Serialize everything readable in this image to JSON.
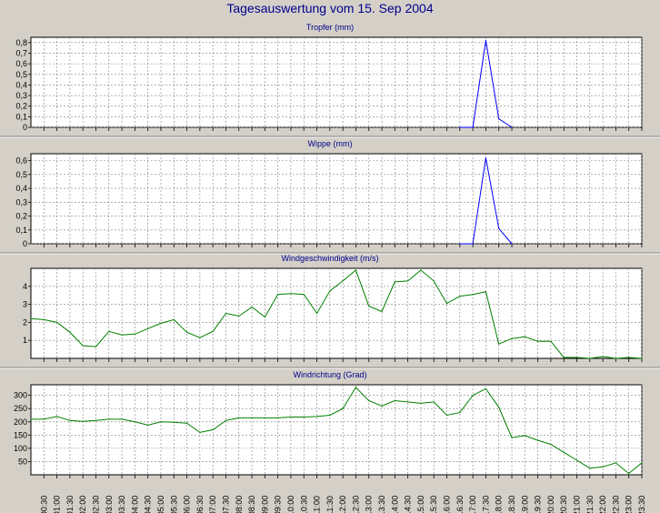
{
  "page_title": "Tagesauswertung vom 15. Sep 2004",
  "colors": {
    "background": "#d4d0c8",
    "plot_background": "#ffffff",
    "title_text": "#00008b",
    "blue_series": "#0000ff",
    "green_series": "#008000",
    "grid": "#808080"
  },
  "x_tick_labels": [
    "00:30",
    "01:00",
    "01:30",
    "02:00",
    "02:30",
    "03:00",
    "03:30",
    "04:00",
    "04:30",
    "05:00",
    "05:30",
    "06:00",
    "06:30",
    "07:00",
    "07:30",
    "08:00",
    "08:30",
    "09:00",
    "09:30",
    "10:00",
    "10:30",
    "11:00",
    "11:30",
    "12:00",
    "12:30",
    "13:00",
    "13:30",
    "14:00",
    "14:30",
    "15:00",
    "15:30",
    "16:00",
    "16:30",
    "17:00",
    "17:30",
    "18:00",
    "18:30",
    "19:00",
    "19:30",
    "20:00",
    "20:30",
    "21:00",
    "21:30",
    "22:00",
    "22:30",
    "23:00",
    "23:30"
  ],
  "chart_data": [
    {
      "type": "line",
      "title": "Tropfer (mm)",
      "ylim": [
        0,
        0.85
      ],
      "yticks": [
        0,
        0.1,
        0.2,
        0.3,
        0.4,
        0.5,
        0.6,
        0.7,
        0.8
      ],
      "ytick_labels": [
        "0",
        "0,1",
        "0,2",
        "0,3",
        "0,4",
        "0,5",
        "0,6",
        "0,7",
        "0,8"
      ],
      "grid": true,
      "color": "#0000ff",
      "x": [
        "16:30",
        "17:00",
        "17:30",
        "18:00",
        "18:30"
      ],
      "values": [
        0,
        0,
        0.82,
        0.08,
        0
      ]
    },
    {
      "type": "line",
      "title": "Wippe (mm)",
      "ylim": [
        0,
        0.65
      ],
      "yticks": [
        0,
        0.1,
        0.2,
        0.3,
        0.4,
        0.5,
        0.6
      ],
      "ytick_labels": [
        "0",
        "0,1",
        "0,2",
        "0,3",
        "0,4",
        "0,5",
        "0,6"
      ],
      "grid": true,
      "color": "#0000ff",
      "x": [
        "16:30",
        "17:00",
        "17:30",
        "18:00",
        "18:30"
      ],
      "values": [
        0,
        0,
        0.62,
        0.11,
        0
      ]
    },
    {
      "type": "line",
      "title": "Windgeschwindigkeit (m/s)",
      "ylim": [
        0,
        5
      ],
      "yticks": [
        1,
        2,
        3,
        4
      ],
      "ytick_labels": [
        "1",
        "2",
        "3",
        "4"
      ],
      "grid": true,
      "color": "#008000",
      "x": [
        "00:00",
        "00:30",
        "01:00",
        "01:30",
        "02:00",
        "02:30",
        "03:00",
        "03:30",
        "04:00",
        "04:30",
        "05:00",
        "05:30",
        "06:00",
        "06:30",
        "07:00",
        "07:30",
        "08:00",
        "08:30",
        "09:00",
        "09:30",
        "10:00",
        "10:30",
        "11:00",
        "11:30",
        "12:00",
        "12:30",
        "13:00",
        "13:30",
        "14:00",
        "14:30",
        "15:00",
        "15:30",
        "16:00",
        "16:30",
        "17:00",
        "17:30",
        "18:00",
        "18:30",
        "19:00",
        "19:30",
        "20:00",
        "20:30",
        "21:00",
        "21:30",
        "22:00",
        "22:30",
        "23:00",
        "23:30"
      ],
      "values": [
        2.2,
        2.15,
        2.0,
        1.45,
        0.7,
        0.65,
        1.5,
        1.3,
        1.35,
        1.65,
        1.95,
        2.15,
        1.45,
        1.15,
        1.5,
        2.5,
        2.35,
        2.85,
        2.3,
        3.55,
        3.6,
        3.55,
        2.5,
        3.75,
        4.3,
        4.9,
        2.9,
        2.6,
        4.25,
        4.3,
        4.9,
        4.3,
        3.05,
        3.45,
        3.55,
        3.7,
        0.8,
        1.1,
        1.2,
        0.95,
        0.95,
        0.05,
        0.05,
        0.0,
        0.1,
        0.0,
        0.05,
        0.0
      ],
      "x_partial_note": ""
    },
    {
      "type": "line",
      "title": "Windrichtung (Grad)",
      "ylim": [
        0,
        340
      ],
      "yticks": [
        50,
        100,
        150,
        200,
        250,
        300
      ],
      "ytick_labels": [
        "50",
        "100",
        "150",
        "200",
        "250",
        "300"
      ],
      "grid": true,
      "color": "#008000",
      "x": [
        "00:00",
        "00:30",
        "01:00",
        "01:30",
        "02:00",
        "02:30",
        "03:00",
        "03:30",
        "04:00",
        "04:30",
        "05:00",
        "05:30",
        "06:00",
        "06:30",
        "07:00",
        "07:30",
        "08:00",
        "08:30",
        "09:00",
        "09:30",
        "10:00",
        "10:30",
        "11:00",
        "11:30",
        "12:00",
        "12:30",
        "13:00",
        "13:30",
        "14:00",
        "14:30",
        "15:00",
        "15:30",
        "16:00",
        "16:30",
        "17:00",
        "17:30",
        "18:00",
        "18:30",
        "19:00",
        "19:30",
        "20:00",
        "20:30",
        "21:00",
        "21:30",
        "22:00",
        "22:30",
        "23:00",
        "23:30"
      ],
      "values": [
        210,
        210,
        220,
        205,
        202,
        205,
        210,
        210,
        200,
        188,
        200,
        198,
        195,
        160,
        170,
        205,
        215,
        215,
        215,
        215,
        218,
        218,
        220,
        225,
        250,
        330,
        280,
        260,
        280,
        275,
        270,
        275,
        225,
        235,
        300,
        325,
        255,
        140,
        148,
        130,
        115,
        85,
        55,
        25,
        30,
        45,
        5,
        45
      ]
    }
  ]
}
